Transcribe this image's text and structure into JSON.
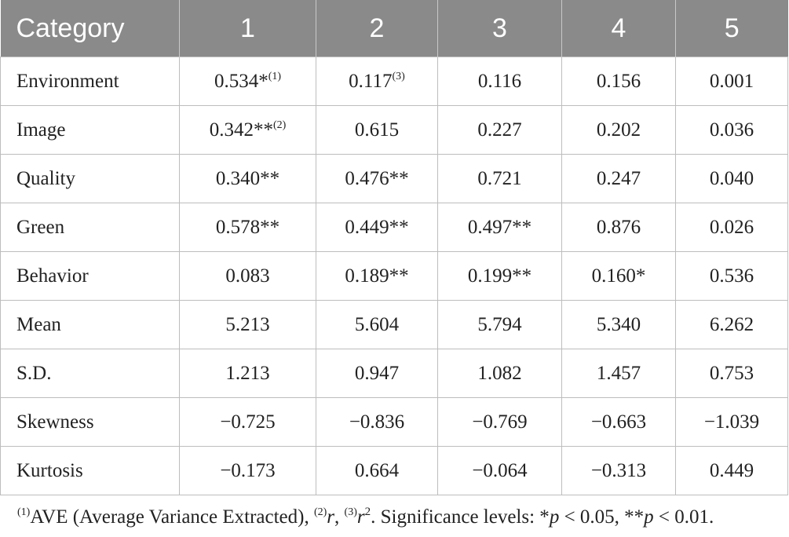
{
  "table": {
    "headers": [
      "Category",
      "1",
      "2",
      "3",
      "4",
      "5"
    ],
    "rows": [
      {
        "label": "Environment",
        "cells": [
          {
            "v": "0.534*",
            "sup": "(1)"
          },
          {
            "v": "0.117",
            "sup": "(3)"
          },
          {
            "v": "0.116"
          },
          {
            "v": "0.156"
          },
          {
            "v": "0.001"
          }
        ]
      },
      {
        "label": "Image",
        "cells": [
          {
            "v": "0.342**",
            "sup": "(2)"
          },
          {
            "v": "0.615"
          },
          {
            "v": "0.227"
          },
          {
            "v": "0.202"
          },
          {
            "v": "0.036"
          }
        ]
      },
      {
        "label": "Quality",
        "cells": [
          {
            "v": "0.340**"
          },
          {
            "v": "0.476**"
          },
          {
            "v": "0.721"
          },
          {
            "v": "0.247"
          },
          {
            "v": "0.040"
          }
        ]
      },
      {
        "label": "Green",
        "cells": [
          {
            "v": "0.578**"
          },
          {
            "v": "0.449**"
          },
          {
            "v": "0.497**"
          },
          {
            "v": "0.876"
          },
          {
            "v": "0.026"
          }
        ]
      },
      {
        "label": "Behavior",
        "cells": [
          {
            "v": "0.083"
          },
          {
            "v": "0.189**"
          },
          {
            "v": "0.199**"
          },
          {
            "v": "0.160*"
          },
          {
            "v": "0.536"
          }
        ]
      },
      {
        "label": "Mean",
        "cells": [
          {
            "v": "5.213"
          },
          {
            "v": "5.604"
          },
          {
            "v": "5.794"
          },
          {
            "v": "5.340"
          },
          {
            "v": "6.262"
          }
        ]
      },
      {
        "label": "S.D.",
        "cells": [
          {
            "v": "1.213"
          },
          {
            "v": "0.947"
          },
          {
            "v": "1.082"
          },
          {
            "v": "1.457"
          },
          {
            "v": "0.753"
          }
        ]
      },
      {
        "label": "Skewness",
        "cells": [
          {
            "v": "−0.725"
          },
          {
            "v": "−0.836"
          },
          {
            "v": "−0.769"
          },
          {
            "v": "−0.663"
          },
          {
            "v": "−1.039"
          }
        ]
      },
      {
        "label": "Kurtosis",
        "cells": [
          {
            "v": "−0.173"
          },
          {
            "v": "0.664"
          },
          {
            "v": "−0.064"
          },
          {
            "v": "−0.313"
          },
          {
            "v": "0.449"
          }
        ]
      }
    ]
  },
  "footnote": {
    "sup1": "(1)",
    "ave": "AVE (Average Variance Extracted), ",
    "sup2": "(2)",
    "r": "r",
    "comma": ", ",
    "sup3": "(3)",
    "r2": "r",
    "pow": "2",
    "sig": ". Significance levels: *",
    "p1": "p",
    "lt1": " < 0.05, **",
    "p2": "p",
    "lt2": " < 0.01."
  }
}
